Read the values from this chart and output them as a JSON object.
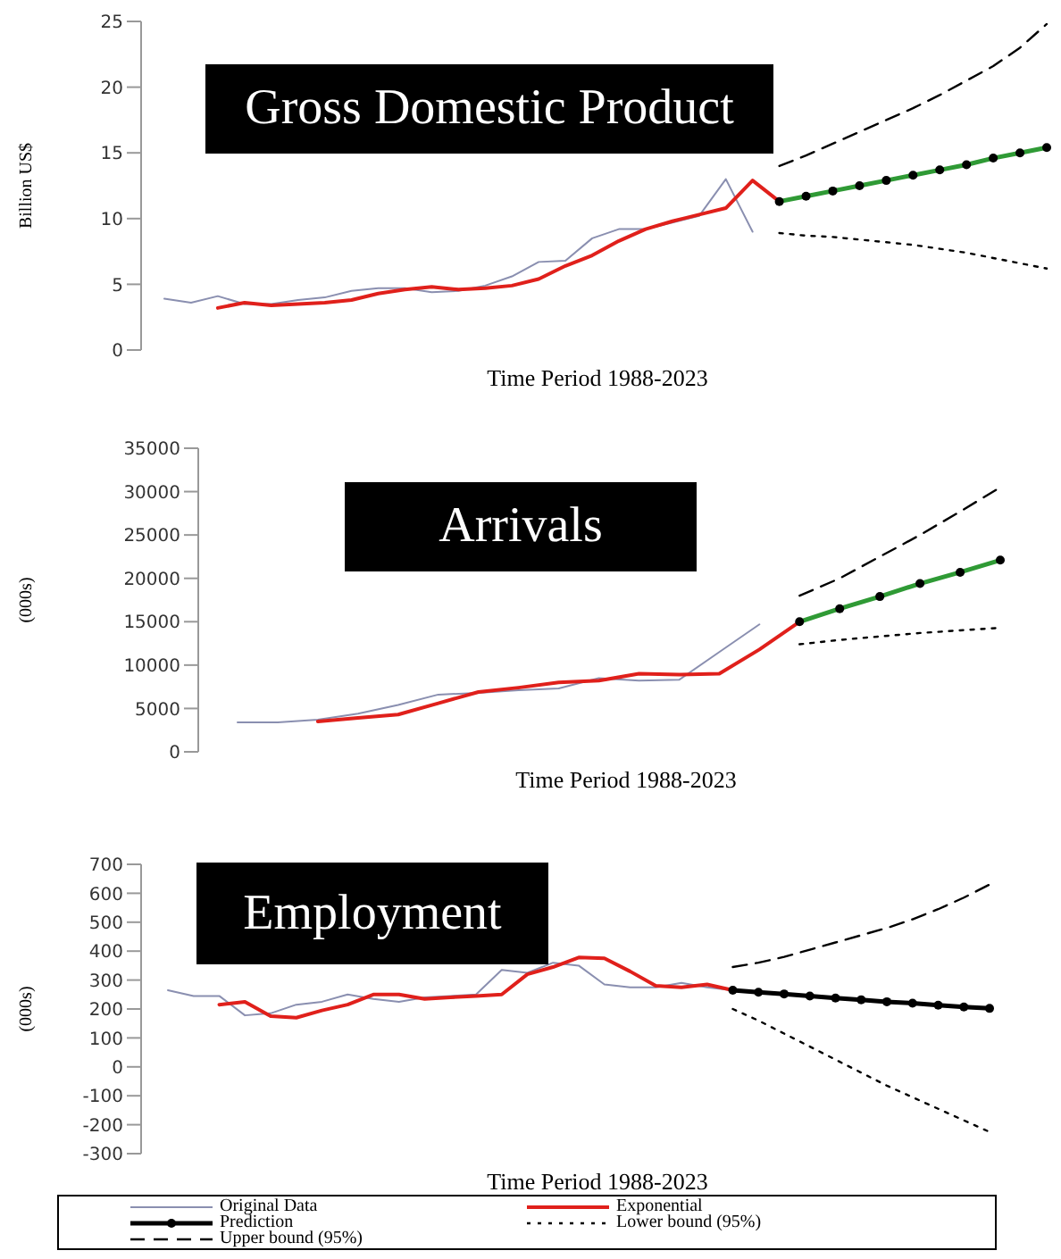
{
  "chart_data": [
    {
      "type": "line",
      "title": "Gross Domestic Product",
      "xlabel": "Time Period  1988-2023",
      "ylabel": "Billion US$",
      "categories": [
        null,
        null,
        null,
        null,
        null,
        null,
        null,
        null,
        null,
        null,
        null,
        null,
        null,
        null,
        null,
        null,
        null,
        null,
        null,
        null,
        null,
        null,
        null,
        null,
        null,
        null,
        null,
        null,
        null,
        null,
        null,
        null,
        null,
        null
      ],
      "ylim": [
        0,
        25
      ],
      "yticks": [
        0,
        5,
        10,
        15,
        20,
        25
      ],
      "tick_labels": "y",
      "legend": false,
      "series": [
        {
          "color": "#8a8fb0",
          "marker": "none",
          "line_style": "solid",
          "values": [
            3.9,
            3.6,
            4.1,
            3.5,
            3.5,
            3.8,
            4.0,
            4.5,
            4.7,
            4.7,
            4.4,
            4.5,
            4.9,
            5.6,
            6.7,
            6.8,
            8.5,
            9.2,
            9.2,
            9.7,
            10.2,
            13.0,
            9.0,
            null,
            null,
            null,
            null,
            null,
            null,
            null,
            null,
            null,
            null,
            null
          ]
        },
        {
          "color": "#e0201b",
          "marker": "none",
          "line_style": "solid",
          "values": [
            null,
            null,
            3.2,
            3.6,
            3.4,
            3.5,
            3.6,
            3.8,
            4.3,
            4.6,
            4.8,
            4.6,
            4.7,
            4.9,
            5.4,
            6.4,
            7.2,
            8.3,
            9.2,
            9.8,
            10.3,
            10.8,
            12.9,
            11.3,
            null,
            null,
            null,
            null,
            null,
            null,
            null,
            null,
            null,
            null
          ]
        },
        {
          "color": "#2f9a35",
          "marker": "circle",
          "line_style": "solid",
          "values": [
            null,
            null,
            null,
            null,
            null,
            null,
            null,
            null,
            null,
            null,
            null,
            null,
            null,
            null,
            null,
            null,
            null,
            null,
            null,
            null,
            null,
            null,
            null,
            11.3,
            11.7,
            12.1,
            12.5,
            12.9,
            13.3,
            13.7,
            14.1,
            14.6,
            15.0,
            15.4
          ]
        },
        {
          "color": "#000000",
          "marker": "none",
          "line_style": "dotted",
          "values": [
            null,
            null,
            null,
            null,
            null,
            null,
            null,
            null,
            null,
            null,
            null,
            null,
            null,
            null,
            null,
            null,
            null,
            null,
            null,
            null,
            null,
            null,
            null,
            8.9,
            8.7,
            8.6,
            8.4,
            8.2,
            8.0,
            7.7,
            7.4,
            7.0,
            6.6,
            6.2
          ]
        },
        {
          "color": "#000000",
          "marker": "none",
          "line_style": "dashed",
          "values": [
            null,
            null,
            null,
            null,
            null,
            null,
            null,
            null,
            null,
            null,
            null,
            null,
            null,
            null,
            null,
            null,
            null,
            null,
            null,
            null,
            null,
            null,
            null,
            14.0,
            14.8,
            15.7,
            16.6,
            17.5,
            18.4,
            19.4,
            20.5,
            21.6,
            23.0,
            24.8
          ]
        }
      ]
    },
    {
      "type": "line",
      "title": "Arrivals",
      "xlabel": "Time Period  1988-2023",
      "ylabel": "(000s)",
      "categories": [
        null,
        null,
        null,
        null,
        null,
        null,
        null,
        null,
        null,
        null,
        null,
        null,
        null,
        null,
        null,
        null,
        null,
        null,
        null,
        null
      ],
      "ylim": [
        0,
        35000
      ],
      "yticks": [
        0,
        5000,
        10000,
        15000,
        20000,
        25000,
        30000,
        35000
      ],
      "tick_labels": "y",
      "legend": false,
      "series": [
        {
          "color": "#8a8fb0",
          "marker": "none",
          "line_style": "solid",
          "values": [
            3400,
            3400,
            3700,
            4400,
            5400,
            6600,
            6800,
            7100,
            7300,
            8500,
            8200,
            8300,
            11500,
            14700,
            null,
            null,
            null,
            null,
            null,
            null
          ]
        },
        {
          "color": "#e0201b",
          "marker": "none",
          "line_style": "solid",
          "values": [
            null,
            null,
            3500,
            3900,
            4300,
            5600,
            6900,
            7400,
            8000,
            8200,
            9000,
            8900,
            9000,
            11800,
            15000,
            null,
            null,
            null,
            null,
            null
          ]
        },
        {
          "color": "#2f9a35",
          "marker": "circle",
          "line_style": "solid",
          "values": [
            null,
            null,
            null,
            null,
            null,
            null,
            null,
            null,
            null,
            null,
            null,
            null,
            null,
            null,
            15000,
            16500,
            17900,
            19400,
            20700,
            22100
          ]
        },
        {
          "color": "#000000",
          "marker": "none",
          "line_style": "dotted",
          "values": [
            null,
            null,
            null,
            null,
            null,
            null,
            null,
            null,
            null,
            null,
            null,
            null,
            null,
            null,
            12400,
            12900,
            13300,
            13700,
            14000,
            14300
          ]
        },
        {
          "color": "#000000",
          "marker": "none",
          "line_style": "dashed",
          "values": [
            null,
            null,
            null,
            null,
            null,
            null,
            null,
            null,
            null,
            null,
            null,
            null,
            null,
            null,
            18000,
            20000,
            22500,
            25000,
            27700,
            30500
          ]
        }
      ]
    },
    {
      "type": "line",
      "title": "Employment",
      "xlabel": "Time Period  1988-2023",
      "ylabel": "(000s)",
      "categories": [
        null,
        null,
        null,
        null,
        null,
        null,
        null,
        null,
        null,
        null,
        null,
        null,
        null,
        null,
        null,
        null,
        null,
        null,
        null,
        null,
        null,
        null,
        null,
        null,
        null,
        null,
        null,
        null,
        null,
        null,
        null,
        null,
        null
      ],
      "ylim": [
        -300,
        700
      ],
      "yticks": [
        -300,
        -200,
        -100,
        0,
        100,
        200,
        300,
        400,
        500,
        600,
        700
      ],
      "tick_labels": "y",
      "legend": "bottom",
      "series": [
        {
          "name": "Original Data",
          "color": "#8a8fb0",
          "marker": "none",
          "line_style": "solid",
          "values": [
            265,
            245,
            245,
            178,
            185,
            215,
            225,
            250,
            235,
            225,
            240,
            245,
            250,
            335,
            325,
            360,
            350,
            285,
            275,
            275,
            290,
            275,
            265,
            null,
            null,
            null,
            null,
            null,
            null,
            null,
            null,
            null,
            null
          ]
        },
        {
          "name": "Exponential",
          "color": "#e0201b",
          "marker": "none",
          "line_style": "solid",
          "values": [
            null,
            null,
            215,
            225,
            175,
            170,
            195,
            215,
            250,
            250,
            235,
            240,
            245,
            250,
            320,
            345,
            378,
            375,
            330,
            280,
            275,
            285,
            265,
            null,
            null,
            null,
            null,
            null,
            null,
            null,
            null,
            null,
            null
          ]
        },
        {
          "name": "Prediction",
          "color": "#000000",
          "marker": "circle",
          "line_style": "solid",
          "values": [
            null,
            null,
            null,
            null,
            null,
            null,
            null,
            null,
            null,
            null,
            null,
            null,
            null,
            null,
            null,
            null,
            null,
            null,
            null,
            null,
            null,
            null,
            265,
            258,
            252,
            245,
            238,
            232,
            225,
            220,
            213,
            207,
            202
          ]
        },
        {
          "name": "Lower bound (95%)",
          "color": "#000000",
          "marker": "none",
          "line_style": "dotted",
          "values": [
            null,
            null,
            null,
            null,
            null,
            null,
            null,
            null,
            null,
            null,
            null,
            null,
            null,
            null,
            null,
            null,
            null,
            null,
            null,
            null,
            null,
            null,
            200,
            160,
            115,
            70,
            25,
            -20,
            -65,
            -105,
            -145,
            -185,
            -225
          ]
        },
        {
          "name": "Upper bound (95%)",
          "color": "#000000",
          "marker": "none",
          "line_style": "dashed",
          "values": [
            null,
            null,
            null,
            null,
            null,
            null,
            null,
            null,
            null,
            null,
            null,
            null,
            null,
            null,
            null,
            null,
            null,
            null,
            null,
            null,
            null,
            null,
            345,
            360,
            380,
            405,
            430,
            455,
            480,
            510,
            545,
            585,
            630
          ]
        }
      ]
    }
  ]
}
